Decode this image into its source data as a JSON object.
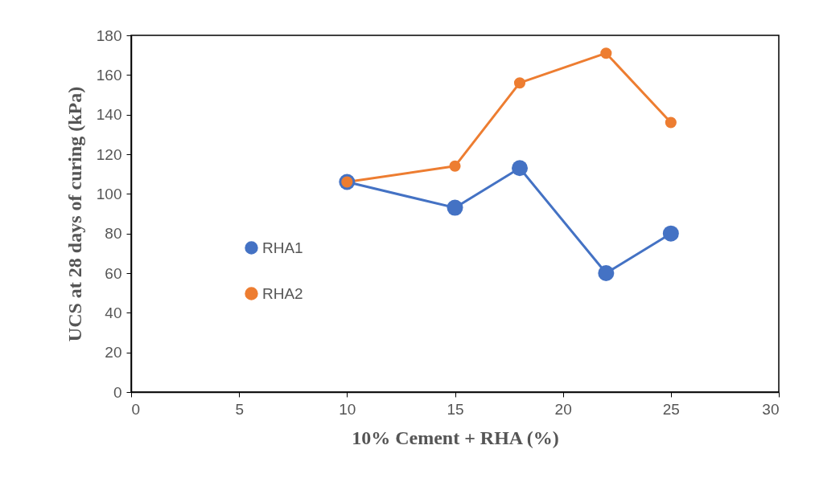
{
  "chart_data": {
    "type": "line",
    "xlabel": "10% Cement + RHA (%)",
    "ylabel": "UCS at 28 days of curing (kPa)",
    "x": [
      10,
      15,
      18,
      22,
      25
    ],
    "series": [
      {
        "name": "RHA1",
        "color": "#4472c4",
        "values": [
          106,
          93,
          113,
          60,
          80
        ]
      },
      {
        "name": "RHA2",
        "color": "#ed7d31",
        "values": [
          106,
          114,
          156,
          171,
          136
        ]
      }
    ],
    "xlim": [
      0,
      30
    ],
    "xticks": [
      0,
      5,
      10,
      15,
      20,
      25,
      30
    ],
    "ylim": [
      0,
      180
    ],
    "yticks": [
      0,
      20,
      40,
      60,
      80,
      100,
      120,
      140,
      160,
      180
    ],
    "grid": false,
    "legend": "left",
    "marker": "circle",
    "line_style": "solid"
  }
}
